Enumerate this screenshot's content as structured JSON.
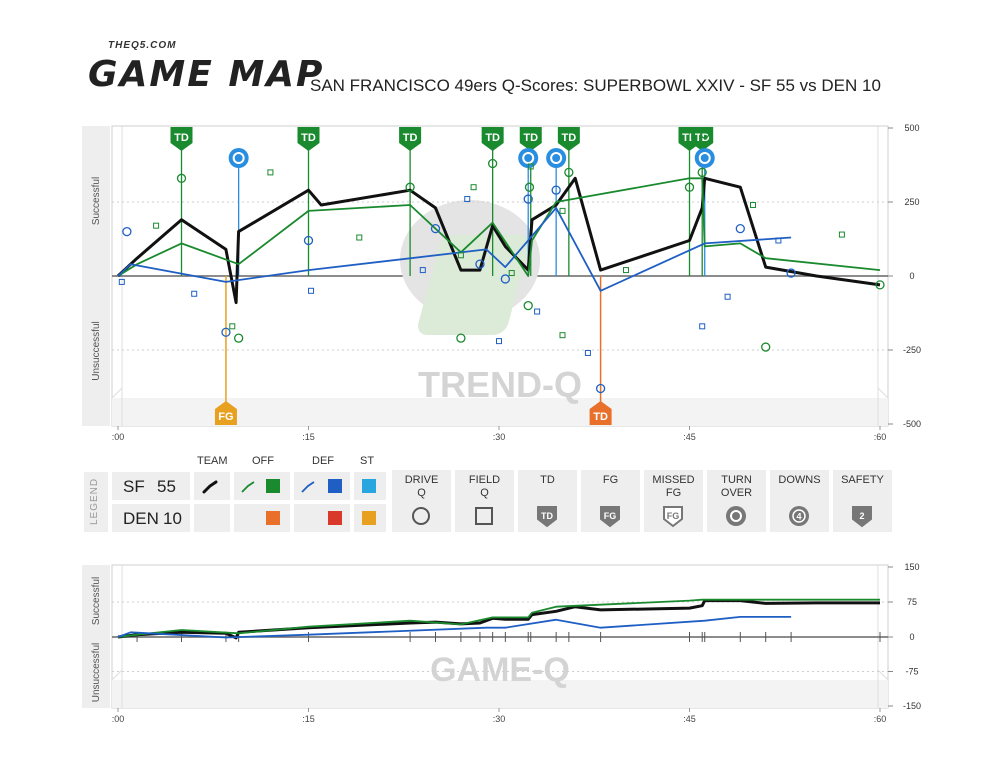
{
  "brand": {
    "site": "THEQ5.COM",
    "product": "GAME MAP"
  },
  "title": "SAN FRANCISCO 49ers Q-Scores: SUPERBOWL XXIV - SF 55 vs DEN 10",
  "colors": {
    "team": "#111111",
    "sf_off": "#1a8a2e",
    "sf_def": "#1f5fc4",
    "sf_st": "#29a6e0",
    "den_off": "#e8702a",
    "den_def": "#d8392b",
    "den_st": "#e8a020",
    "td_flag": "#1a8a2e",
    "fg_flag": "#e8a020",
    "den_td_flag": "#e8702a",
    "turnover": "#2a8ee0"
  },
  "chart_data": [
    {
      "type": "line",
      "name": "trend-q",
      "watermark": "TREND-Q",
      "ylabel_top": "Successful",
      "ylabel_bottom": "Unsuccessful",
      "x_ticks": [
        ":00",
        ":15",
        ":30",
        ":45",
        ":60"
      ],
      "y_ticks": [
        "500",
        "250",
        "0",
        "-250",
        "-500"
      ],
      "xlim": [
        0,
        60
      ],
      "ylim": [
        -500,
        500
      ],
      "series": [
        {
          "key": "team",
          "values": [
            [
              0,
              0
            ],
            [
              1.5,
              60
            ],
            [
              5,
              190
            ],
            [
              8.5,
              90
            ],
            [
              9.3,
              -90
            ],
            [
              9.5,
              150
            ],
            [
              15,
              290
            ],
            [
              16,
              240
            ],
            [
              23,
              290
            ],
            [
              25,
              230
            ],
            [
              27,
              20
            ],
            [
              28.5,
              20
            ],
            [
              29.5,
              170
            ],
            [
              30.5,
              100
            ],
            [
              32.3,
              20
            ],
            [
              32.6,
              190
            ],
            [
              34.5,
              240
            ],
            [
              36,
              330
            ],
            [
              38,
              20
            ],
            [
              45,
              120
            ],
            [
              46,
              230
            ],
            [
              46.2,
              330
            ],
            [
              49,
              300
            ],
            [
              51,
              30
            ],
            [
              55,
              0
            ],
            [
              60,
              -30
            ]
          ]
        },
        {
          "key": "sf_off",
          "values": [
            [
              0,
              0
            ],
            [
              1.5,
              40
            ],
            [
              5,
              110
            ],
            [
              9.5,
              40
            ],
            [
              15,
              220
            ],
            [
              23,
              240
            ],
            [
              27,
              80
            ],
            [
              29.5,
              180
            ],
            [
              32.3,
              0
            ],
            [
              32.6,
              120
            ],
            [
              34.5,
              250
            ],
            [
              45,
              330
            ],
            [
              46,
              330
            ],
            [
              46.2,
              100
            ],
            [
              49,
              110
            ],
            [
              51,
              60
            ],
            [
              60,
              20
            ]
          ]
        },
        {
          "key": "sf_def",
          "values": [
            [
              0,
              0
            ],
            [
              1,
              40
            ],
            [
              8.5,
              -20
            ],
            [
              15,
              20
            ],
            [
              29,
              90
            ],
            [
              30.5,
              30
            ],
            [
              34.5,
              230
            ],
            [
              38,
              -50
            ],
            [
              46.2,
              110
            ],
            [
              53,
              130
            ]
          ]
        }
      ],
      "markers_td": [
        5,
        15,
        23,
        29.5,
        32.5,
        35.5,
        45,
        46
      ],
      "markers_td_labels": [
        "TD",
        "TD",
        "TD",
        "TD",
        "TD",
        "TD",
        "TD",
        "TD"
      ],
      "markers_den_fg": [
        8.5
      ],
      "markers_den_fg_label": "FG",
      "markers_den_td": [
        38
      ],
      "markers_den_td_label": "TD",
      "markers_turnover": [
        9.5,
        32.3,
        34.5,
        46.2
      ],
      "drive_q_green": [
        [
          5,
          330
        ],
        [
          23,
          300
        ],
        [
          29.5,
          380
        ],
        [
          32.4,
          300
        ],
        [
          35.5,
          350
        ],
        [
          45,
          300
        ],
        [
          46,
          350
        ],
        [
          46.2,
          480
        ],
        [
          9.5,
          -210
        ],
        [
          27,
          -210
        ],
        [
          32.3,
          -100
        ],
        [
          51,
          -240
        ],
        [
          60,
          -30
        ]
      ],
      "drive_q_blue": [
        [
          0.7,
          150
        ],
        [
          15,
          120
        ],
        [
          25,
          160
        ],
        [
          28.5,
          40
        ],
        [
          30.5,
          -10
        ],
        [
          32.3,
          260
        ],
        [
          34.5,
          290
        ],
        [
          49,
          160
        ],
        [
          53,
          10
        ],
        [
          8.5,
          -190
        ],
        [
          38,
          -380
        ]
      ],
      "field_q_green": [
        [
          3,
          170
        ],
        [
          12,
          350
        ],
        [
          19,
          130
        ],
        [
          28,
          300
        ],
        [
          32.5,
          370
        ],
        [
          35,
          220
        ],
        [
          40,
          20
        ],
        [
          50,
          240
        ],
        [
          57,
          140
        ],
        [
          9,
          -170
        ],
        [
          27,
          70
        ],
        [
          31,
          10
        ],
        [
          35,
          -200
        ]
      ],
      "field_q_blue": [
        [
          0.3,
          -20
        ],
        [
          6,
          -60
        ],
        [
          15.2,
          -50
        ],
        [
          24,
          20
        ],
        [
          27.5,
          260
        ],
        [
          30,
          -220
        ],
        [
          33,
          -120
        ],
        [
          37,
          -260
        ],
        [
          46,
          -170
        ],
        [
          48,
          -70
        ],
        [
          52,
          120
        ]
      ]
    },
    {
      "type": "line",
      "name": "game-q",
      "watermark": "GAME-Q",
      "ylabel_top": "Successful",
      "ylabel_bottom": "Unsuccessful",
      "x_ticks": [
        ":00",
        ":15",
        ":30",
        ":45",
        ":60"
      ],
      "y_ticks": [
        "150",
        "75",
        "0",
        "-75",
        "-150"
      ],
      "xlim": [
        0,
        60
      ],
      "ylim": [
        -150,
        150
      ],
      "series": [
        {
          "key": "team",
          "values": [
            [
              0,
              0
            ],
            [
              1.5,
              5
            ],
            [
              5,
              10
            ],
            [
              8.5,
              8
            ],
            [
              9.3,
              -2
            ],
            [
              9.5,
              10
            ],
            [
              15,
              20
            ],
            [
              23,
              30
            ],
            [
              25,
              32
            ],
            [
              27,
              28
            ],
            [
              28.5,
              30
            ],
            [
              29.5,
              40
            ],
            [
              30.5,
              38
            ],
            [
              32.3,
              38
            ],
            [
              32.6,
              48
            ],
            [
              34.5,
              55
            ],
            [
              36,
              65
            ],
            [
              38,
              58
            ],
            [
              45,
              62
            ],
            [
              46,
              67
            ],
            [
              46.2,
              78
            ],
            [
              49,
              78
            ],
            [
              51,
              72
            ],
            [
              55,
              73
            ],
            [
              60,
              73
            ]
          ]
        },
        {
          "key": "sf_off",
          "values": [
            [
              0,
              0
            ],
            [
              1.5,
              5
            ],
            [
              5,
              15
            ],
            [
              9.5,
              8
            ],
            [
              15,
              22
            ],
            [
              23,
              35
            ],
            [
              27,
              27
            ],
            [
              29.5,
              42
            ],
            [
              32.3,
              42
            ],
            [
              32.6,
              52
            ],
            [
              34.5,
              65
            ],
            [
              45,
              78
            ],
            [
              46,
              80
            ],
            [
              60,
              80
            ]
          ]
        },
        {
          "key": "sf_def",
          "values": [
            [
              0,
              0
            ],
            [
              1,
              10
            ],
            [
              8.5,
              -1
            ],
            [
              15,
              5
            ],
            [
              29,
              20
            ],
            [
              30.5,
              20
            ],
            [
              34.5,
              37
            ],
            [
              38,
              20
            ],
            [
              46.2,
              35
            ],
            [
              49,
              43
            ],
            [
              53,
              43
            ]
          ]
        }
      ],
      "drive_ticks": [
        1.5,
        5,
        8.5,
        9.5,
        15,
        23,
        25,
        27,
        28.5,
        29.5,
        30.5,
        32.3,
        32.5,
        34.5,
        35.5,
        38,
        45,
        46,
        46.2,
        49,
        51,
        53,
        60
      ]
    }
  ],
  "legend": {
    "side_label": "LEGEND",
    "headers": {
      "team": "TEAM",
      "off": "OFF",
      "def": "DEF",
      "st": "ST"
    },
    "teams": [
      {
        "name": "SF",
        "score": "55"
      },
      {
        "name": "DEN",
        "score": "10"
      }
    ],
    "symbols": [
      {
        "label": "DRIVE Q",
        "icon": "circle-icon"
      },
      {
        "label": "FIELD Q",
        "icon": "square-icon"
      },
      {
        "label": "TD",
        "icon": "td-shield-icon",
        "glyph": "TD"
      },
      {
        "label": "FG",
        "icon": "fg-shield-icon",
        "glyph": "FG"
      },
      {
        "label": "MISSED FG",
        "icon": "missed-fg-shield-icon",
        "glyph": "FG"
      },
      {
        "label": "TURN OVER",
        "icon": "turnover-icon"
      },
      {
        "label": "DOWNS",
        "icon": "downs-icon",
        "glyph": "4"
      },
      {
        "label": "SAFETY",
        "icon": "safety-shield-icon",
        "glyph": "2"
      }
    ]
  }
}
